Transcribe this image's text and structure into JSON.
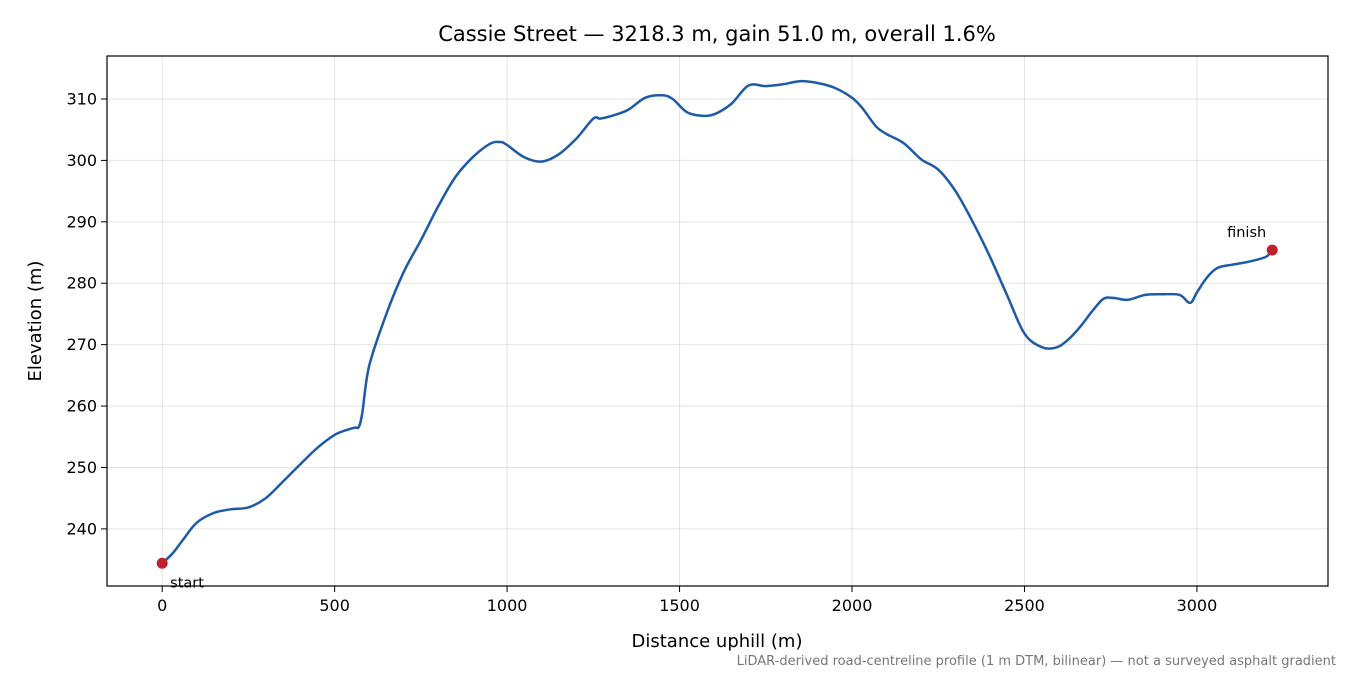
{
  "chart_data": {
    "type": "line",
    "title": "Cassie Street — 3218.3 m, gain 51.0 m, overall 1.6%",
    "xlabel": "Distance uphill (m)",
    "ylabel": "Elevation (m)",
    "xlim": [
      -160,
      3380
    ],
    "ylim": [
      230.7,
      317.0
    ],
    "xticks": [
      0,
      500,
      1000,
      1500,
      2000,
      2500,
      3000
    ],
    "yticks": [
      240,
      250,
      260,
      270,
      280,
      290,
      300,
      310
    ],
    "grid": true,
    "line_color": "#1f5aa6",
    "marker_color": "#c0202c",
    "footnote": "LiDAR-derived road-centreline profile (1 m DTM, bilinear) — not a surveyed asphalt gradient",
    "annotations": [
      {
        "label": "start",
        "x": 0,
        "y": 234.4
      },
      {
        "label": "finish",
        "x": 3218.3,
        "y": 285.4
      }
    ],
    "series": [
      {
        "x": [
          0,
          30,
          60,
          100,
          150,
          200,
          250,
          300,
          350,
          400,
          450,
          500,
          540,
          560,
          570,
          580,
          600,
          650,
          700,
          750,
          800,
          850,
          900,
          950,
          980,
          1000,
          1050,
          1100,
          1150,
          1200,
          1250,
          1270,
          1300,
          1350,
          1400,
          1450,
          1480,
          1520,
          1560,
          1600,
          1650,
          1700,
          1750,
          1800,
          1850,
          1900,
          1950,
          2000,
          2030,
          2070,
          2100,
          2150,
          2200,
          2250,
          2300,
          2350,
          2400,
          2450,
          2500,
          2550,
          2590,
          2620,
          2660,
          2700,
          2730,
          2760,
          2800,
          2850,
          2900,
          2950,
          2980,
          3000,
          3030,
          3060,
          3100,
          3150,
          3200,
          3218.3
        ],
        "y": [
          234.4,
          236.0,
          238.2,
          241.0,
          242.6,
          243.2,
          243.5,
          245.0,
          247.7,
          250.5,
          253.2,
          255.3,
          256.2,
          256.5,
          256.6,
          258.8,
          266.5,
          275.0,
          281.8,
          287.0,
          292.5,
          297.3,
          300.5,
          302.7,
          303.0,
          302.5,
          300.5,
          299.8,
          301.0,
          303.5,
          306.8,
          306.8,
          307.2,
          308.2,
          310.2,
          310.6,
          310.0,
          307.9,
          307.3,
          307.5,
          309.2,
          312.2,
          312.1,
          312.4,
          312.9,
          312.6,
          311.8,
          310.2,
          308.5,
          305.5,
          304.3,
          302.8,
          300.2,
          298.5,
          295.0,
          290.0,
          284.3,
          278.0,
          271.8,
          269.6,
          269.5,
          270.5,
          272.8,
          275.7,
          277.5,
          277.6,
          277.3,
          278.1,
          278.2,
          278.1,
          276.8,
          278.5,
          281.0,
          282.5,
          283.0,
          283.5,
          284.3,
          285.4
        ]
      }
    ]
  }
}
